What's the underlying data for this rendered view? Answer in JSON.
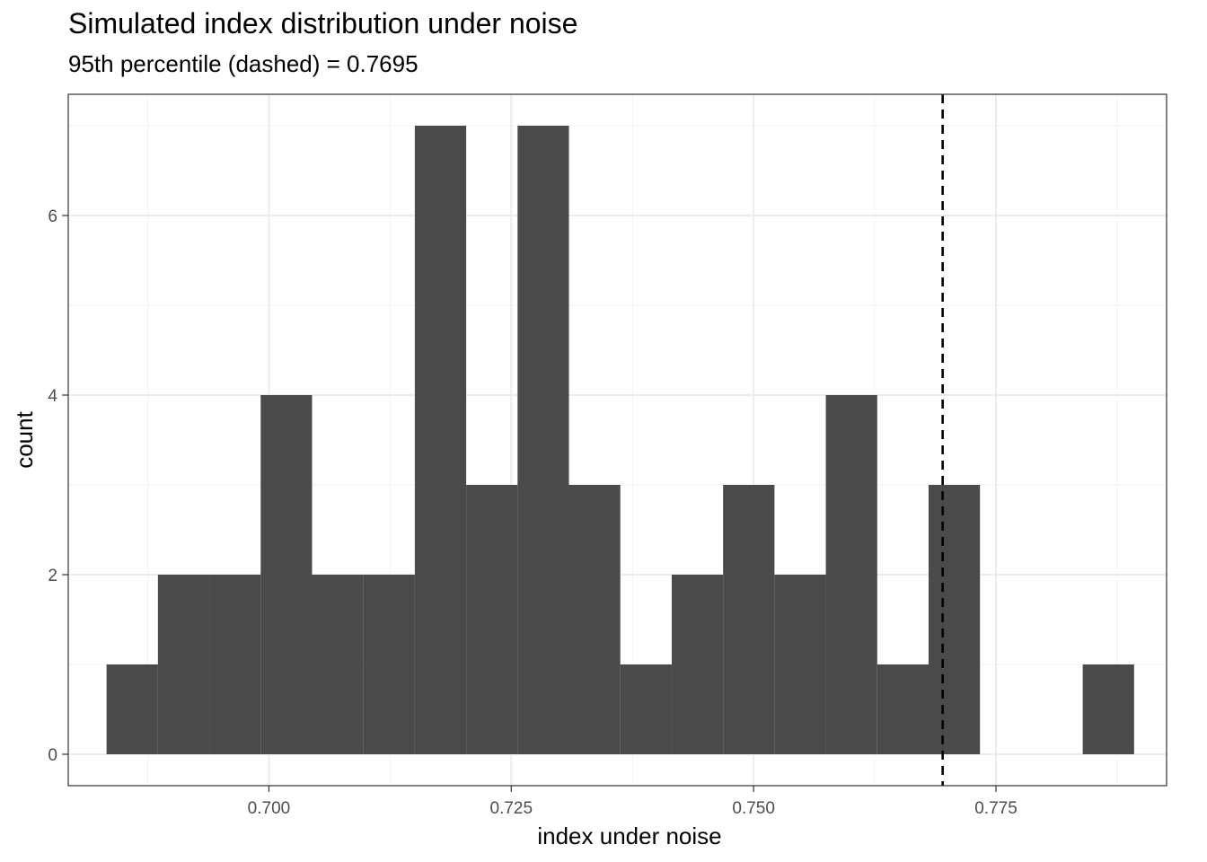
{
  "chart_data": {
    "type": "bar",
    "title": "Simulated index distribution under noise",
    "subtitle": "95th percentile (dashed) = 0.7695",
    "xlabel": "index under noise",
    "ylabel": "count",
    "xlim": [
      0.6793,
      0.7926
    ],
    "ylim": [
      -0.35,
      7.35
    ],
    "x_ticks": [
      0.7,
      0.725,
      0.75,
      0.775
    ],
    "x_tick_labels": [
      "0.700",
      "0.725",
      "0.750",
      "0.775"
    ],
    "y_ticks": [
      0,
      2,
      4,
      6
    ],
    "y_tick_labels": [
      "0",
      "2",
      "4",
      "6"
    ],
    "bin_width": 0.0053,
    "bin_centers": [
      0.6859,
      0.6912,
      0.6965,
      0.7018,
      0.7071,
      0.7124,
      0.7177,
      0.723,
      0.7283,
      0.7336,
      0.7389,
      0.7442,
      0.7495,
      0.7548,
      0.7601,
      0.7654,
      0.7707,
      0.776,
      0.7813,
      0.7866
    ],
    "counts": [
      1,
      2,
      2,
      4,
      2,
      2,
      7,
      3,
      7,
      3,
      1,
      2,
      3,
      2,
      4,
      1,
      3,
      0,
      0,
      1
    ],
    "reference_line": {
      "x": 0.7695,
      "style": "dashed"
    },
    "grid": true,
    "colors": {
      "bar": "#4a4a4a",
      "grid_major": "#ebebeb",
      "grid_minor": "#f2f2f2",
      "panel_border": "#333333",
      "reference_line": "#000000"
    }
  }
}
